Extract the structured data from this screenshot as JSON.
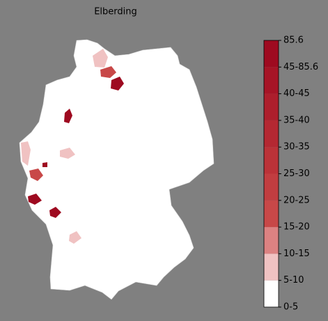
{
  "title": "Elberding",
  "legend": {
    "labels": [
      "0-5",
      "5-10",
      "10-15",
      "15-20",
      "20-25",
      "25-30",
      "30-35",
      "35-40",
      "40-45",
      "45-85.6",
      "85.6"
    ],
    "colors": [
      "#ffffff",
      "#f0c2c2",
      "#dc8282",
      "#c84848",
      "#c13d40",
      "#bb3238",
      "#b42832",
      "#ad1e2c",
      "#a61426",
      "#9e0a20"
    ]
  }
}
